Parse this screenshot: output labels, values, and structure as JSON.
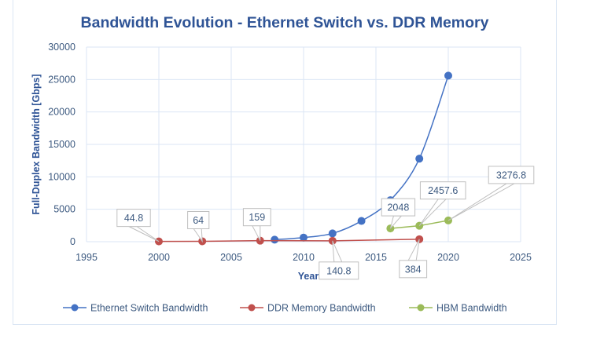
{
  "chart_data": {
    "type": "line",
    "title": "Bandwidth Evolution - Ethernet Switch vs. DDR Memory",
    "xlabel": "Year",
    "ylabel": "Full-Duplex Bandwidth [Gbps]",
    "xlim": [
      1995,
      2025
    ],
    "ylim": [
      0,
      30000
    ],
    "xticks": [
      1995,
      2000,
      2005,
      2010,
      2015,
      2020,
      2025
    ],
    "yticks": [
      0,
      5000,
      10000,
      15000,
      20000,
      25000,
      30000
    ],
    "grid": true,
    "legend_position": "bottom",
    "series": [
      {
        "name": "Ethernet Switch Bandwidth",
        "color": "#4472c4",
        "smooth": true,
        "points": [
          [
            2008,
            320
          ],
          [
            2010,
            640
          ],
          [
            2012,
            1280
          ],
          [
            2014,
            3200
          ],
          [
            2016,
            6400
          ],
          [
            2018,
            12800
          ],
          [
            2020,
            25600
          ]
        ],
        "labels": []
      },
      {
        "name": "DDR Memory Bandwidth",
        "color": "#c0504d",
        "smooth": false,
        "points": [
          [
            2000,
            44.8
          ],
          [
            2003,
            64
          ],
          [
            2007,
            159
          ],
          [
            2012,
            140.8
          ],
          [
            2018,
            384
          ]
        ],
        "labels": [
          "44.8",
          "64",
          "159",
          "140.8",
          "384"
        ]
      },
      {
        "name": "HBM Bandwidth",
        "color": "#9bbb59",
        "smooth": false,
        "points": [
          [
            2016,
            2048
          ],
          [
            2018,
            2457.6
          ],
          [
            2020,
            3276.8
          ]
        ],
        "labels": [
          "2048",
          "2457.6",
          "3276.8"
        ]
      }
    ]
  }
}
